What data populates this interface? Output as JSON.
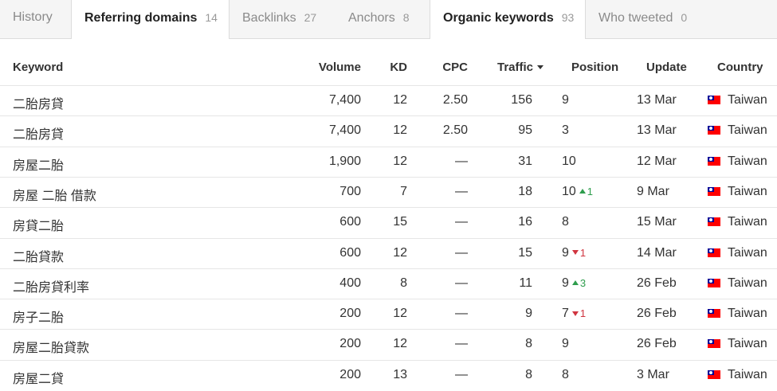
{
  "tabs": [
    {
      "label": "History",
      "count": ""
    },
    {
      "label": "Referring domains",
      "count": "14"
    },
    {
      "label": "Backlinks",
      "count": "27"
    },
    {
      "label": "Anchors",
      "count": "8"
    },
    {
      "label": "Organic keywords",
      "count": "93"
    },
    {
      "label": "Who tweeted",
      "count": "0"
    }
  ],
  "table": {
    "headers": {
      "keyword": "Keyword",
      "volume": "Volume",
      "kd": "KD",
      "cpc": "CPC",
      "traffic": "Traffic",
      "position": "Position",
      "update": "Update",
      "country": "Country"
    },
    "rows": [
      {
        "keyword": "二胎房貸",
        "volume": "7,400",
        "kd": "12",
        "cpc": "2.50",
        "traffic": "156",
        "position": "9",
        "delta": "",
        "update": "13 Mar",
        "country": "Taiwan"
      },
      {
        "keyword": "二胎房貸",
        "volume": "7,400",
        "kd": "12",
        "cpc": "2.50",
        "traffic": "95",
        "position": "3",
        "delta": "",
        "update": "13 Mar",
        "country": "Taiwan"
      },
      {
        "keyword": "房屋二胎",
        "volume": "1,900",
        "kd": "12",
        "cpc": "—",
        "traffic": "31",
        "position": "10",
        "delta": "",
        "update": "12 Mar",
        "country": "Taiwan"
      },
      {
        "keyword": "房屋 二胎 借款",
        "volume": "700",
        "kd": "7",
        "cpc": "—",
        "traffic": "18",
        "position": "10",
        "delta": "1",
        "delta_dir": "up",
        "update": "9 Mar",
        "country": "Taiwan"
      },
      {
        "keyword": "房貸二胎",
        "volume": "600",
        "kd": "15",
        "cpc": "—",
        "traffic": "16",
        "position": "8",
        "delta": "",
        "update": "15 Mar",
        "country": "Taiwan"
      },
      {
        "keyword": "二胎貸款",
        "volume": "600",
        "kd": "12",
        "cpc": "—",
        "traffic": "15",
        "position": "9",
        "delta": "1",
        "delta_dir": "down",
        "update": "14 Mar",
        "country": "Taiwan"
      },
      {
        "keyword": "二胎房貸利率",
        "volume": "400",
        "kd": "8",
        "cpc": "—",
        "traffic": "11",
        "position": "9",
        "delta": "3",
        "delta_dir": "up",
        "update": "26 Feb",
        "country": "Taiwan"
      },
      {
        "keyword": "房子二胎",
        "volume": "200",
        "kd": "12",
        "cpc": "—",
        "traffic": "9",
        "position": "7",
        "delta": "1",
        "delta_dir": "down",
        "update": "26 Feb",
        "country": "Taiwan"
      },
      {
        "keyword": "房屋二胎貸款",
        "volume": "200",
        "kd": "12",
        "cpc": "—",
        "traffic": "8",
        "position": "9",
        "delta": "",
        "update": "26 Feb",
        "country": "Taiwan"
      },
      {
        "keyword": "房屋二貸",
        "volume": "200",
        "kd": "13",
        "cpc": "—",
        "traffic": "8",
        "position": "8",
        "delta": "",
        "update": "3 Mar",
        "country": "Taiwan"
      }
    ]
  },
  "colors": {
    "delta_up": "#2e9d4d",
    "delta_down": "#d0343f",
    "flag_red": "#fe0000",
    "flag_blue": "#000095"
  },
  "icons": {
    "sort": "sort-desc-icon",
    "flag": "taiwan-flag-icon",
    "up": "arrow-up-icon",
    "down": "arrow-down-icon"
  }
}
